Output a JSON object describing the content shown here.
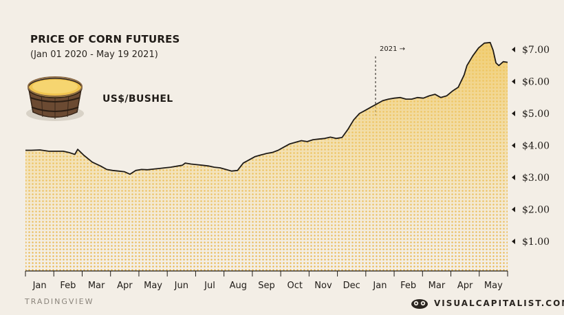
{
  "title": "PRICE OF CORN FUTURES",
  "subtitle": "(Jan 01 2020 - May 19 2021)",
  "unit": "US$/BUSHEL",
  "source": "TRADINGVIEW",
  "brand": "VISUALCAPITALIST.COM",
  "annotation": "2021 →",
  "colors": {
    "fill": "#f0c860",
    "line": "#1f1b17",
    "background": "#f3eee6"
  },
  "chart_data": {
    "type": "area",
    "x_labels": [
      "Jan",
      "Feb",
      "Mar",
      "Apr",
      "May",
      "Jun",
      "Jul",
      "Aug",
      "Sep",
      "Oct",
      "Nov",
      "Dec",
      "Jan",
      "Feb",
      "Mar",
      "Apr",
      "May"
    ],
    "y_ticks": [
      7,
      6,
      5,
      4,
      3,
      2,
      1
    ],
    "y_tick_labels": [
      "$7.00",
      "$6.00",
      "$5.00",
      "$4.00",
      "$3.00",
      "$2.00",
      "$1.00"
    ],
    "ylim": [
      0,
      7.4
    ],
    "months": [
      1,
      17.6
    ],
    "x": [
      1.0,
      1.2,
      1.5,
      1.8,
      2.0,
      2.3,
      2.5,
      2.7,
      2.8,
      3.0,
      3.3,
      3.6,
      3.8,
      4.0,
      4.2,
      4.4,
      4.6,
      4.8,
      5.0,
      5.2,
      5.4,
      5.6,
      5.8,
      6.0,
      6.2,
      6.4,
      6.5,
      6.7,
      6.9,
      7.1,
      7.3,
      7.5,
      7.7,
      7.9,
      8.1,
      8.3,
      8.5,
      8.7,
      8.9,
      9.1,
      9.3,
      9.5,
      9.7,
      9.9,
      10.1,
      10.3,
      10.5,
      10.7,
      10.9,
      11.1,
      11.3,
      11.5,
      11.7,
      11.9,
      12.1,
      12.3,
      12.5,
      12.7,
      12.9,
      13.1,
      13.3,
      13.5,
      13.7,
      13.9,
      14.1,
      14.3,
      14.5,
      14.7,
      14.9,
      15.1,
      15.3,
      15.5,
      15.7,
      15.9,
      16.1,
      16.2,
      16.4,
      16.6,
      16.8,
      17.0,
      17.1,
      17.2,
      17.3,
      17.45,
      17.6
    ],
    "y": [
      3.85,
      3.85,
      3.86,
      3.82,
      3.82,
      3.82,
      3.78,
      3.72,
      3.88,
      3.7,
      3.48,
      3.35,
      3.25,
      3.22,
      3.2,
      3.18,
      3.1,
      3.22,
      3.25,
      3.24,
      3.26,
      3.28,
      3.3,
      3.32,
      3.35,
      3.38,
      3.45,
      3.42,
      3.4,
      3.38,
      3.36,
      3.32,
      3.3,
      3.25,
      3.2,
      3.22,
      3.45,
      3.55,
      3.65,
      3.7,
      3.75,
      3.78,
      3.85,
      3.95,
      4.05,
      4.1,
      4.15,
      4.12,
      4.18,
      4.2,
      4.22,
      4.26,
      4.22,
      4.25,
      4.5,
      4.8,
      5.0,
      5.1,
      5.2,
      5.3,
      5.4,
      5.45,
      5.48,
      5.5,
      5.45,
      5.45,
      5.5,
      5.48,
      5.55,
      5.6,
      5.5,
      5.55,
      5.7,
      5.82,
      6.2,
      6.5,
      6.8,
      7.05,
      7.2,
      7.22,
      6.98,
      6.58,
      6.5,
      6.62,
      6.6
    ]
  }
}
